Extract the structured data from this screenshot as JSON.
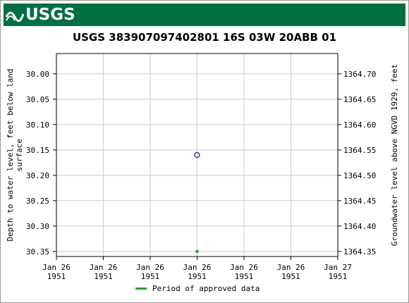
{
  "header": {
    "logo_text": "USGS",
    "logo_icon": "usgs-wave-icon",
    "banner_color": "#006f41"
  },
  "chart_data": {
    "type": "scatter",
    "title": "USGS 383907097402801 16S 03W 20ABB 01",
    "ylabel_left": "Depth to water level, feet below land surface",
    "ylabel_left_lines": [
      "Depth to water level, feet below land",
      "surface"
    ],
    "ylabel_right": "Groundwater level above NGVD 1929, feet",
    "x_ticks": [
      {
        "line1": "Jan 26",
        "line2": "1951"
      },
      {
        "line1": "Jan 26",
        "line2": "1951"
      },
      {
        "line1": "Jan 26",
        "line2": "1951"
      },
      {
        "line1": "Jan 26",
        "line2": "1951"
      },
      {
        "line1": "Jan 26",
        "line2": "1951"
      },
      {
        "line1": "Jan 26",
        "line2": "1951"
      },
      {
        "line1": "Jan 27",
        "line2": "1951"
      }
    ],
    "y_left_ticks": [
      "30.00",
      "30.05",
      "30.10",
      "30.15",
      "30.20",
      "30.25",
      "30.30",
      "30.35"
    ],
    "y_right_ticks": [
      "1364.70",
      "1364.65",
      "1364.60",
      "1364.55",
      "1364.50",
      "1364.45",
      "1364.40",
      "1364.35"
    ],
    "ylim_left": [
      30.36,
      29.96
    ],
    "xlim_fraction": [
      0,
      1
    ],
    "grid": true,
    "series": [
      {
        "kind": "measurement",
        "x_fraction": 0.5,
        "y": 30.16,
        "marker": "open-circle",
        "color": "#1a1aa6"
      },
      {
        "kind": "approved-period",
        "x_fraction": 0.5,
        "y": 30.35,
        "marker": "square",
        "color": "#2b9e2b"
      }
    ],
    "legend": {
      "label": "Period of approved data",
      "color": "#2b9e2b",
      "placement": "bottom"
    }
  }
}
